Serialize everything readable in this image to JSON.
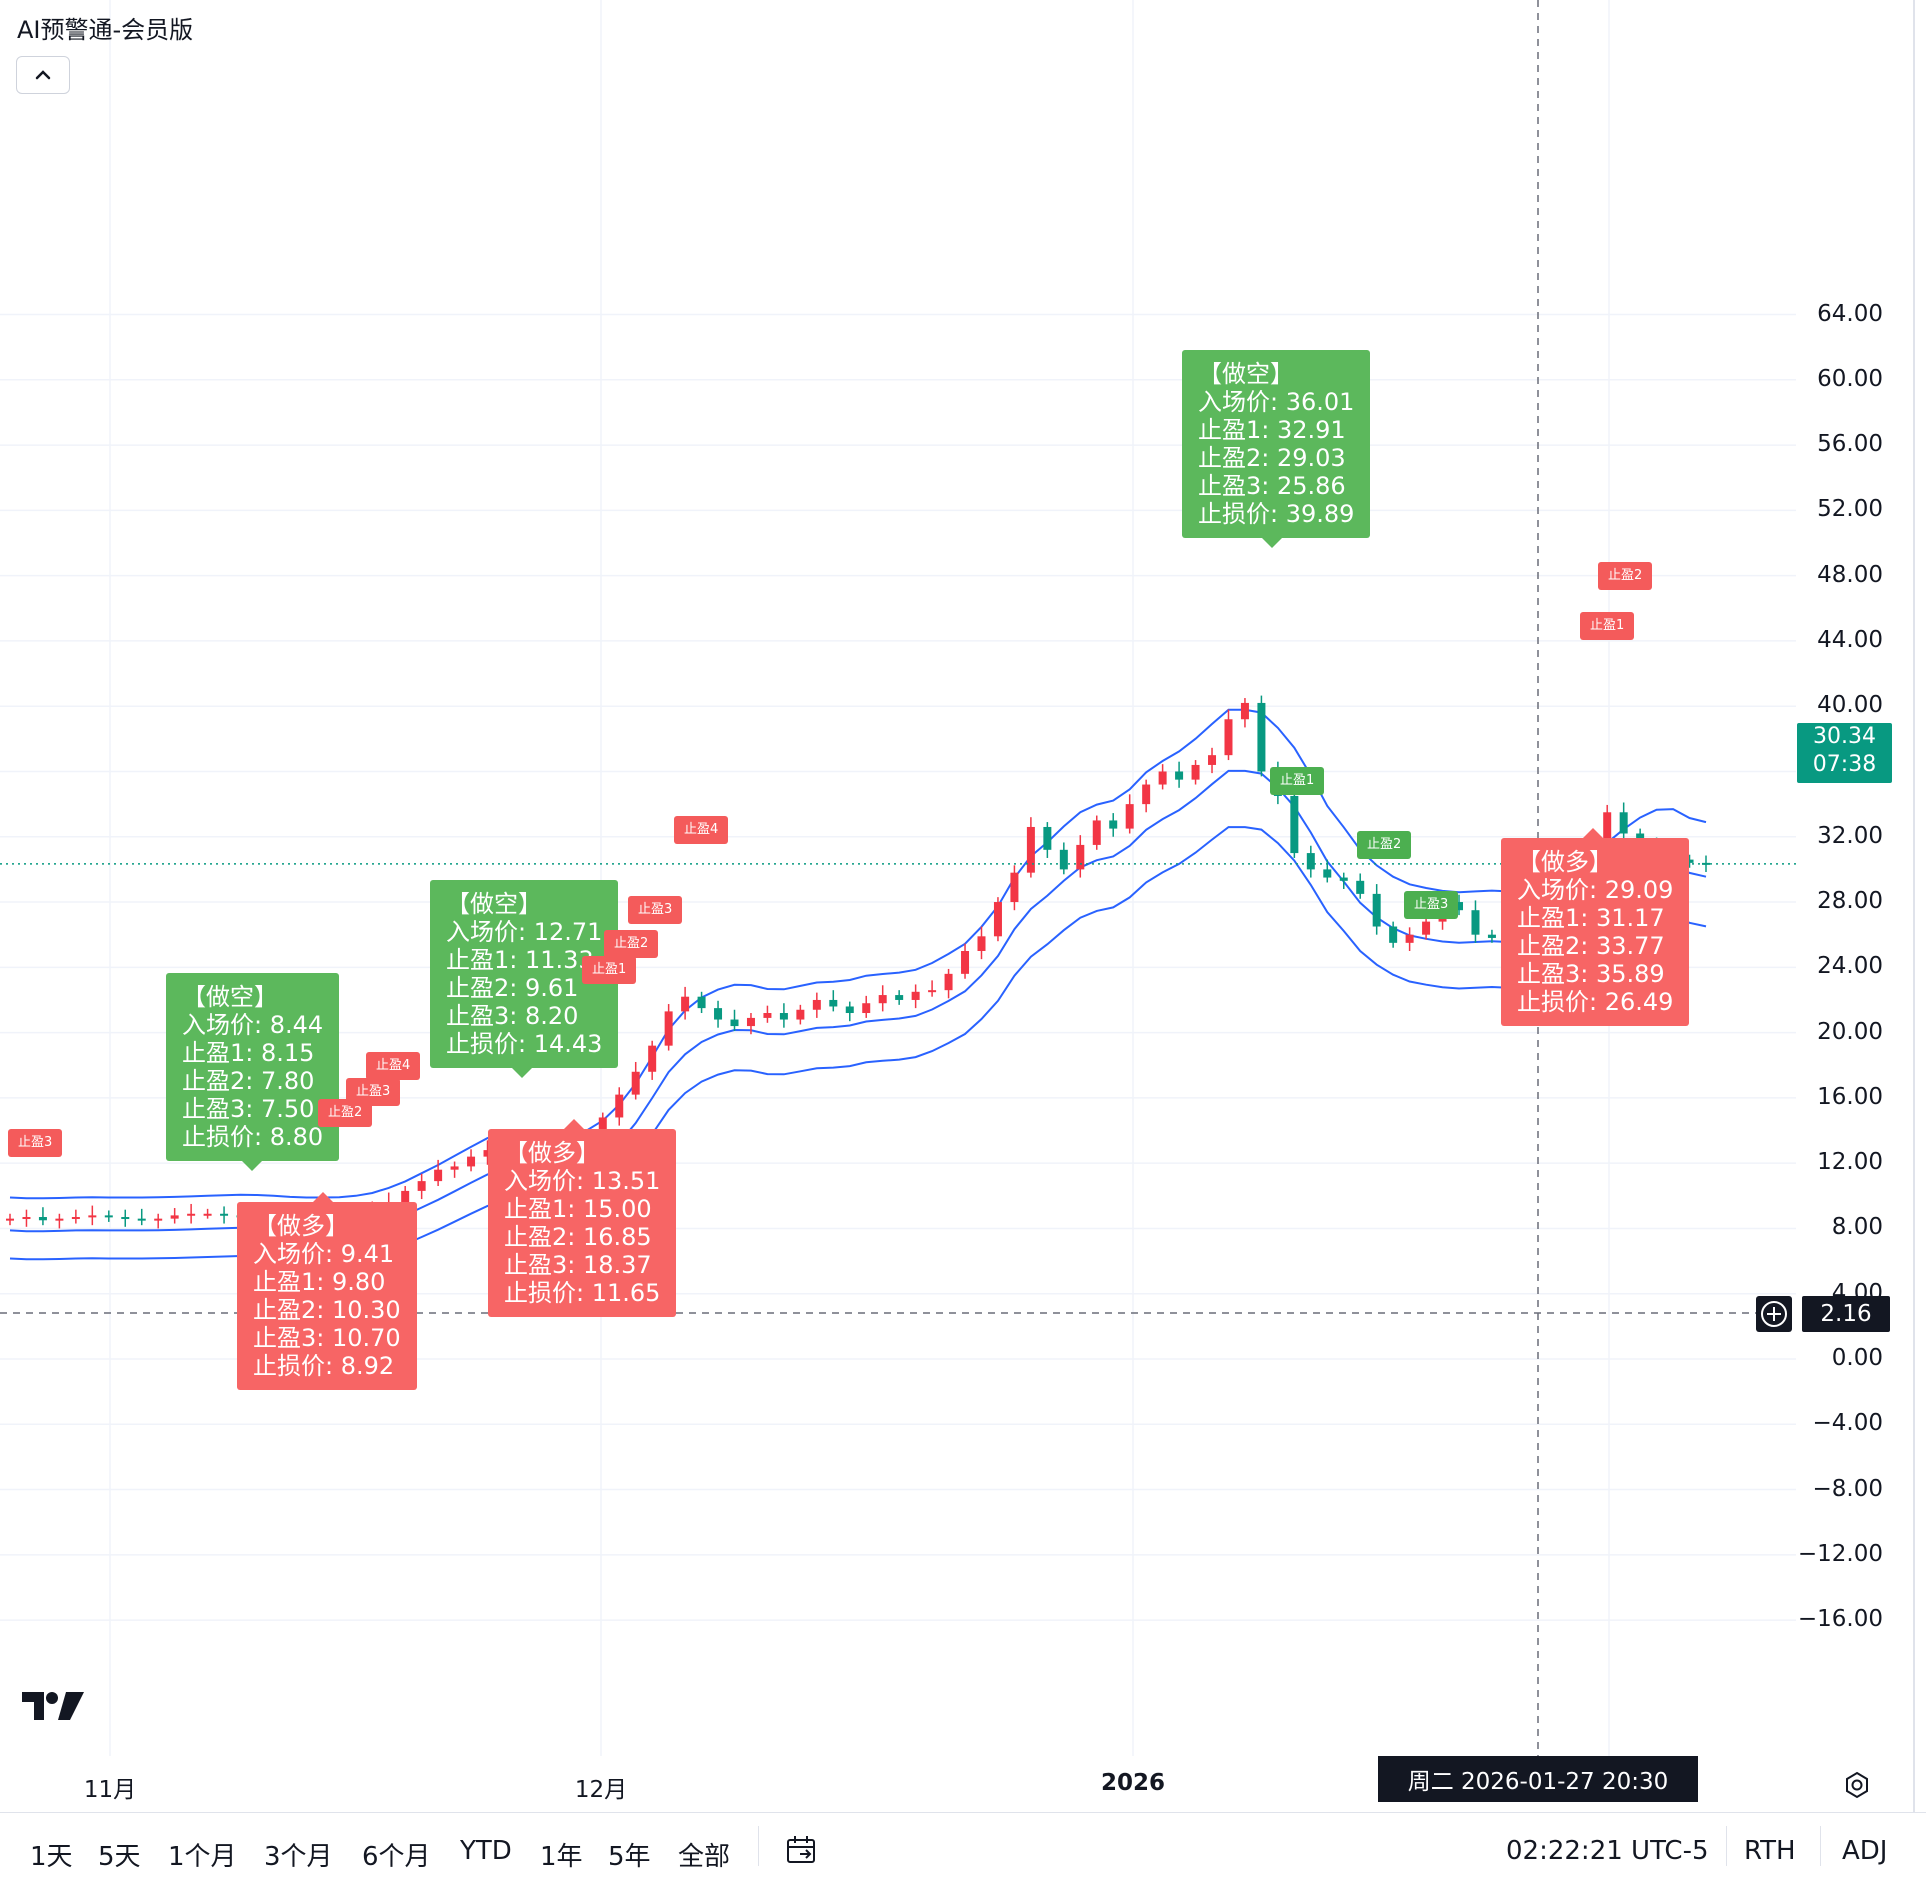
{
  "indicator_title": "AI预警通-会员版",
  "colors": {
    "up": "#f23645",
    "down": "#089981",
    "band": "#2962ff",
    "callout_green": "#5cb85c",
    "callout_red": "#f76565",
    "dash": "#131722"
  },
  "price_axis": [
    "64.00",
    "60.00",
    "56.00",
    "52.00",
    "48.00",
    "44.00",
    "40.00",
    "36.00",
    "32.00",
    "28.00",
    "24.00",
    "20.00",
    "16.00",
    "12.00",
    "8.00",
    "4.00",
    "0.00",
    "−4.00",
    "−8.00",
    "−12.00",
    "−16.00"
  ],
  "time_axis": [
    "11月",
    "12月",
    "2026"
  ],
  "last_price": {
    "value": "30.34",
    "countdown": "07:38"
  },
  "crosshair": {
    "price": "2.16",
    "time": "周二 2026-01-27   20:30"
  },
  "callouts": [
    {
      "side": "short",
      "lines": [
        "【做空】",
        "入场价: 8.44",
        "止盈1: 8.15",
        "止盈2: 7.80",
        "止盈3: 7.50",
        "止损价: 8.80"
      ]
    },
    {
      "side": "long",
      "lines": [
        "【做多】",
        "入场价: 9.41",
        "止盈1: 9.80",
        "止盈2: 10.30",
        "止盈3: 10.70",
        "止损价: 8.92"
      ]
    },
    {
      "side": "short",
      "lines": [
        "【做空】",
        "入场价: 12.71",
        "止盈1: 11.33",
        "止盈2: 9.61",
        "止盈3: 8.20",
        "止损价: 14.43"
      ]
    },
    {
      "side": "long",
      "lines": [
        "【做多】",
        "入场价: 13.51",
        "止盈1: 15.00",
        "止盈2: 16.85",
        "止盈3: 18.37",
        "止损价: 11.65"
      ]
    },
    {
      "side": "short",
      "lines": [
        "【做空】",
        "入场价: 36.01",
        "止盈1: 32.91",
        "止盈2: 29.03",
        "止盈3: 25.86",
        "止损价: 39.89"
      ]
    },
    {
      "side": "long",
      "lines": [
        "【做多】",
        "入场价: 29.09",
        "止盈1: 31.17",
        "止盈2: 33.77",
        "止盈3: 35.89",
        "止损价: 26.49"
      ]
    }
  ],
  "markers": [
    {
      "text": "止盈3",
      "color": "red"
    },
    {
      "text": "止盈2",
      "color": "red"
    },
    {
      "text": "止盈3",
      "color": "red"
    },
    {
      "text": "止盈4",
      "color": "red"
    },
    {
      "text": "止盈1",
      "color": "red"
    },
    {
      "text": "止盈2",
      "color": "red"
    },
    {
      "text": "止盈3",
      "color": "red"
    },
    {
      "text": "止盈4",
      "color": "red"
    },
    {
      "text": "止盈1",
      "color": "green"
    },
    {
      "text": "止盈2",
      "color": "green"
    },
    {
      "text": "止盈3",
      "color": "green"
    },
    {
      "text": "止盈1",
      "color": "red"
    },
    {
      "text": "止盈2",
      "color": "red"
    }
  ],
  "range_buttons": [
    "1天",
    "5天",
    "1个月",
    "3个月",
    "6个月",
    "YTD",
    "1年",
    "5年",
    "全部"
  ],
  "status": {
    "clock": "02:22:21 UTC-5",
    "session": "RTH",
    "adj": "ADJ"
  },
  "chart_data": {
    "type": "candlestick",
    "y_range": [
      -19.5,
      66.5
    ],
    "x_ticks": [
      "11月",
      "12月",
      "2026"
    ],
    "series": [
      {
        "name": "close",
        "note": "approximate closing levels read from candles, early Oct 2025 to late Jan 2026",
        "values": [
          8.6,
          8.7,
          8.5,
          8.6,
          8.7,
          8.8,
          8.7,
          8.6,
          8.5,
          8.6,
          8.8,
          8.9,
          8.9,
          8.8,
          8.7,
          8.8,
          8.7,
          8.6,
          8.5,
          8.6,
          8.7,
          8.9,
          9.2,
          9.6,
          10.3,
          10.9,
          11.6,
          11.8,
          12.4,
          12.8,
          13.4,
          12.6,
          12.0,
          11.7,
          11.9,
          12.5,
          14.8,
          16.2,
          17.6,
          19.2,
          21.3,
          22.2,
          21.5,
          20.8,
          20.4,
          20.9,
          21.2,
          20.8,
          21.4,
          22.0,
          21.6,
          21.2,
          21.8,
          22.3,
          22.0,
          22.5,
          22.6,
          23.6,
          25.0,
          25.9,
          28.0,
          29.8,
          32.6,
          31.2,
          30.0,
          31.5,
          33.0,
          32.5,
          34.0,
          35.2,
          36.0,
          35.5,
          36.4,
          37.0,
          39.2,
          40.2,
          36.0,
          34.5,
          31.0,
          30.0,
          29.5,
          29.3,
          28.5,
          26.5,
          25.5,
          26.0,
          26.8,
          28.0,
          27.5,
          26.0,
          25.8,
          26.3,
          26.5,
          26.7,
          26.9,
          27.8,
          30.2,
          33.5,
          32.2,
          31.5,
          31.0,
          30.6,
          30.4,
          30.34
        ]
      },
      {
        "name": "band_upper",
        "values": []
      }
    ]
  }
}
